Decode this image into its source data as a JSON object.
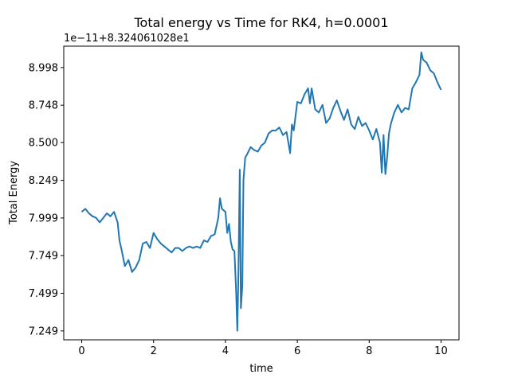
{
  "chart_data": {
    "type": "line",
    "title": "Total energy vs Time for RK4, h=0.0001",
    "xlabel": "time",
    "ylabel": "Total Energy",
    "offset_label": "1e−11+8.324061028e1",
    "xlim": [
      -0.5,
      10.5
    ],
    "ylim": [
      7.19,
      9.14
    ],
    "x_ticks": [
      0,
      2,
      4,
      6,
      8,
      10
    ],
    "x_tick_labels": [
      "0",
      "2",
      "4",
      "6",
      "8",
      "10"
    ],
    "y_ticks": [
      7.249,
      7.499,
      7.749,
      7.999,
      8.249,
      8.5,
      8.748,
      8.998
    ],
    "y_tick_labels": [
      "7.249",
      "7.499",
      "7.749",
      "7.999",
      "8.249",
      "8.500",
      "8.748",
      "8.998"
    ],
    "grid": false,
    "series": [
      {
        "color": "#1f77b4",
        "x": [
          0.0,
          0.1,
          0.2,
          0.3,
          0.4,
          0.5,
          0.6,
          0.7,
          0.8,
          0.9,
          1.0,
          1.05,
          1.1,
          1.2,
          1.3,
          1.4,
          1.5,
          1.6,
          1.7,
          1.8,
          1.9,
          2.0,
          2.1,
          2.2,
          2.3,
          2.4,
          2.5,
          2.6,
          2.7,
          2.8,
          2.9,
          3.0,
          3.1,
          3.2,
          3.3,
          3.4,
          3.5,
          3.6,
          3.7,
          3.8,
          3.85,
          3.9,
          4.0,
          4.05,
          4.1,
          4.15,
          4.2,
          4.25,
          4.3,
          4.33,
          4.36,
          4.4,
          4.43,
          4.47,
          4.5,
          4.55,
          4.6,
          4.7,
          4.8,
          4.9,
          5.0,
          5.1,
          5.2,
          5.3,
          5.4,
          5.5,
          5.6,
          5.7,
          5.8,
          5.85,
          5.9,
          6.0,
          6.1,
          6.2,
          6.3,
          6.35,
          6.4,
          6.5,
          6.6,
          6.7,
          6.8,
          6.9,
          7.0,
          7.1,
          7.2,
          7.3,
          7.4,
          7.5,
          7.6,
          7.7,
          7.8,
          7.9,
          8.0,
          8.1,
          8.2,
          8.3,
          8.35,
          8.4,
          8.45,
          8.5,
          8.55,
          8.6,
          8.7,
          8.8,
          8.9,
          9.0,
          9.1,
          9.2,
          9.3,
          9.4,
          9.45,
          9.5,
          9.6,
          9.7,
          9.8,
          9.9,
          10.0
        ],
        "y": [
          8.04,
          8.06,
          8.03,
          8.01,
          8.0,
          7.97,
          8.0,
          8.03,
          8.01,
          8.04,
          7.97,
          7.85,
          7.8,
          7.68,
          7.72,
          7.64,
          7.67,
          7.72,
          7.83,
          7.84,
          7.8,
          7.9,
          7.86,
          7.83,
          7.81,
          7.79,
          7.77,
          7.8,
          7.8,
          7.78,
          7.8,
          7.81,
          7.8,
          7.81,
          7.8,
          7.85,
          7.84,
          7.88,
          7.89,
          8.0,
          8.13,
          8.06,
          8.04,
          7.9,
          7.96,
          7.84,
          7.79,
          7.78,
          7.5,
          7.25,
          7.6,
          8.32,
          7.4,
          7.55,
          8.25,
          8.4,
          8.42,
          8.47,
          8.45,
          8.44,
          8.48,
          8.5,
          8.56,
          8.58,
          8.58,
          8.6,
          8.55,
          8.57,
          8.43,
          8.62,
          8.58,
          8.77,
          8.76,
          8.82,
          8.86,
          8.76,
          8.86,
          8.72,
          8.7,
          8.75,
          8.63,
          8.66,
          8.73,
          8.78,
          8.71,
          8.65,
          8.72,
          8.62,
          8.59,
          8.67,
          8.61,
          8.63,
          8.58,
          8.52,
          8.59,
          8.5,
          8.3,
          8.55,
          8.29,
          8.4,
          8.56,
          8.62,
          8.7,
          8.75,
          8.7,
          8.73,
          8.72,
          8.86,
          8.9,
          8.95,
          9.1,
          9.05,
          9.03,
          8.98,
          8.96,
          8.9,
          8.85
        ]
      }
    ]
  }
}
